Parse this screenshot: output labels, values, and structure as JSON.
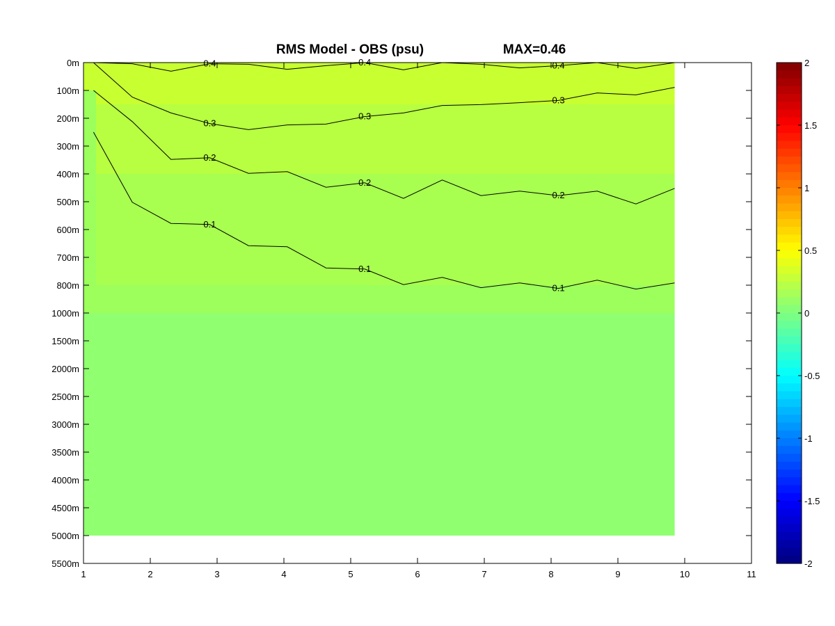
{
  "chart_data": {
    "type": "heatmap",
    "title": "RMS Model - OBS (psu)",
    "max_label": "MAX=0.46",
    "xlabel": "",
    "ylabel": "",
    "xlim": [
      1,
      11
    ],
    "x_ticks": [
      "1",
      "2",
      "3",
      "4",
      "5",
      "6",
      "7",
      "8",
      "9",
      "10",
      "11"
    ],
    "y_ticks": [
      "0m",
      "100m",
      "200m",
      "300m",
      "400m",
      "500m",
      "600m",
      "700m",
      "800m",
      "1000m",
      "1500m",
      "2000m",
      "2500m",
      "3000m",
      "3500m",
      "4000m",
      "4500m",
      "5000m",
      "5500m"
    ],
    "data_x_range": [
      1,
      9.85
    ],
    "data_depth_range": [
      "0m",
      "5000m"
    ],
    "colorbar": {
      "min": -2,
      "max": 2,
      "ticks": [
        "2",
        "1.5",
        "1",
        "0.5",
        "0",
        "-0.5",
        "-1",
        "-1.5",
        "-2"
      ],
      "colormap": "jet"
    },
    "contour_levels": [
      0.1,
      0.2,
      0.3,
      0.4
    ],
    "contours": [
      {
        "level": 0.4,
        "label": "0.4",
        "depth_m": [
          0,
          10,
          25,
          10,
          0,
          30,
          5,
          0,
          20,
          5,
          0,
          25,
          5,
          0,
          15,
          0
        ]
      },
      {
        "level": 0.3,
        "label": "0.3",
        "depth_m": [
          0,
          130,
          175,
          225,
          235,
          230,
          215,
          200,
          175,
          160,
          145,
          150,
          130,
          115,
          110,
          95
        ]
      },
      {
        "level": 0.2,
        "label": "0.2",
        "depth_m": [
          100,
          230,
          330,
          360,
          380,
          410,
          430,
          450,
          470,
          440,
          460,
          480,
          460,
          480,
          490,
          470
        ]
      },
      {
        "level": 0.1,
        "label": "0.1",
        "depth_m": [
          250,
          520,
          560,
          600,
          640,
          680,
          720,
          760,
          780,
          790,
          800,
          810,
          805,
          800,
          810,
          810
        ]
      }
    ],
    "regions": [
      {
        "depth_m": "0-150m",
        "value": 0.43,
        "color": "#c8ff30"
      },
      {
        "depth_m": "150-400m",
        "value": 0.3,
        "color": "#b7ff40"
      },
      {
        "depth_m": "400-800m",
        "value": 0.2,
        "color": "#a8ff50"
      },
      {
        "depth_m": "800-1000m",
        "value": 0.12,
        "color": "#9cff5c"
      },
      {
        "depth_m": "1000-5000m",
        "value": 0.05,
        "color": "#90ff70"
      }
    ]
  }
}
